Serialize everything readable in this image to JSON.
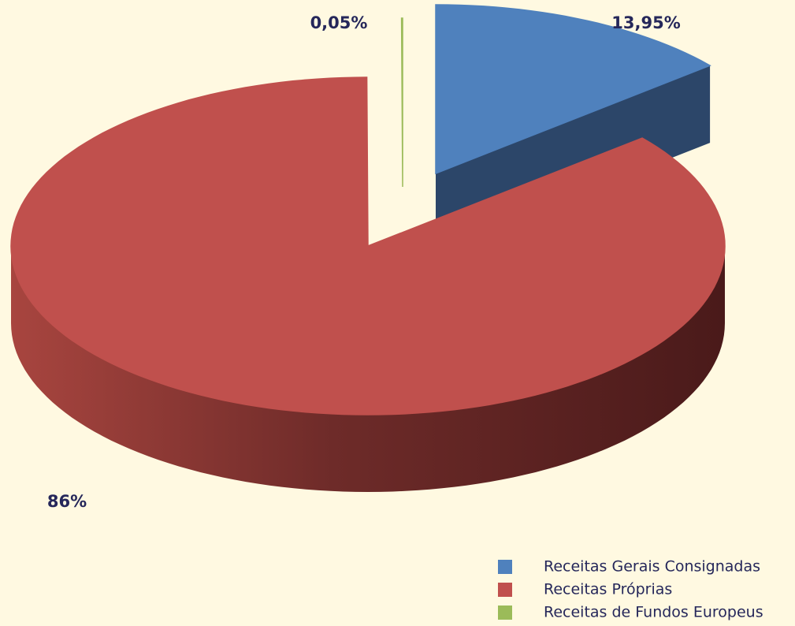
{
  "chart_data": {
    "type": "pie",
    "categories": [
      "Receitas Gerais Consignadas",
      "Receitas Próprias",
      "Receitas de Fundos Europeus"
    ],
    "values": [
      13.95,
      86,
      0.05
    ],
    "value_labels": [
      "13,95%",
      "86%",
      "0,05%"
    ],
    "colors": [
      "#4f81bd",
      "#c0504d",
      "#9bbb59"
    ],
    "legend": "bottom-right"
  }
}
